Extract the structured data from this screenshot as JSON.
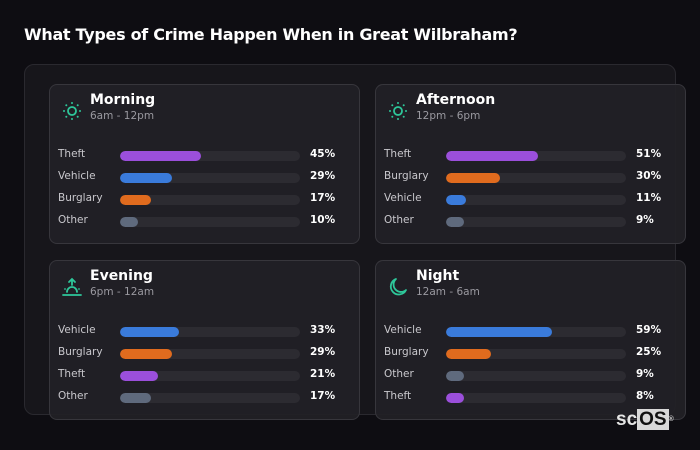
{
  "title": "What Types of Crime Happen When in Great Wilbraham?",
  "colors": {
    "Theft": "#9b4fdb",
    "Vehicle": "#3a7bdb",
    "Burglary": "#e06b1e",
    "Other": "#5f6a7d",
    "icon_accent": "#2ec79a"
  },
  "cards": [
    {
      "name": "Morning",
      "range": "6am - 12pm",
      "icon": "sun-icon",
      "rows": [
        {
          "label": "Theft",
          "value": 45,
          "pct": "45%"
        },
        {
          "label": "Vehicle",
          "value": 29,
          "pct": "29%"
        },
        {
          "label": "Burglary",
          "value": 17,
          "pct": "17%"
        },
        {
          "label": "Other",
          "value": 10,
          "pct": "10%"
        }
      ]
    },
    {
      "name": "Afternoon",
      "range": "12pm - 6pm",
      "icon": "sun-icon",
      "rows": [
        {
          "label": "Theft",
          "value": 51,
          "pct": "51%"
        },
        {
          "label": "Burglary",
          "value": 30,
          "pct": "30%"
        },
        {
          "label": "Vehicle",
          "value": 11,
          "pct": "11%"
        },
        {
          "label": "Other",
          "value": 9,
          "pct": "9%"
        }
      ]
    },
    {
      "name": "Evening",
      "range": "6pm - 12am",
      "icon": "sunset-icon",
      "rows": [
        {
          "label": "Vehicle",
          "value": 33,
          "pct": "33%"
        },
        {
          "label": "Burglary",
          "value": 29,
          "pct": "29%"
        },
        {
          "label": "Theft",
          "value": 21,
          "pct": "21%"
        },
        {
          "label": "Other",
          "value": 17,
          "pct": "17%"
        }
      ]
    },
    {
      "name": "Night",
      "range": "12am - 6am",
      "icon": "moon-icon",
      "rows": [
        {
          "label": "Vehicle",
          "value": 59,
          "pct": "59%"
        },
        {
          "label": "Burglary",
          "value": 25,
          "pct": "25%"
        },
        {
          "label": "Other",
          "value": 9,
          "pct": "9%"
        },
        {
          "label": "Theft",
          "value": 8,
          "pct": "8%"
        }
      ]
    }
  ],
  "logo": {
    "sc": "sc",
    "os": "OS",
    "reg": "®"
  },
  "chart_data": {
    "type": "bar",
    "title": "What Types of Crime Happen When in Great Wilbraham?",
    "orientation": "horizontal",
    "panels": [
      {
        "name": "Morning",
        "range": "6am - 12pm",
        "categories": [
          "Theft",
          "Vehicle",
          "Burglary",
          "Other"
        ],
        "values": [
          45,
          29,
          17,
          10
        ]
      },
      {
        "name": "Afternoon",
        "range": "12pm - 6pm",
        "categories": [
          "Theft",
          "Burglary",
          "Vehicle",
          "Other"
        ],
        "values": [
          51,
          30,
          11,
          9
        ]
      },
      {
        "name": "Evening",
        "range": "6pm - 12am",
        "categories": [
          "Vehicle",
          "Burglary",
          "Theft",
          "Other"
        ],
        "values": [
          33,
          29,
          21,
          17
        ]
      },
      {
        "name": "Night",
        "range": "12am - 6am",
        "categories": [
          "Vehicle",
          "Burglary",
          "Other",
          "Theft"
        ],
        "values": [
          59,
          25,
          9,
          8
        ]
      }
    ],
    "xlim": [
      0,
      100
    ],
    "unit": "%",
    "legend": "none",
    "grid": false
  }
}
